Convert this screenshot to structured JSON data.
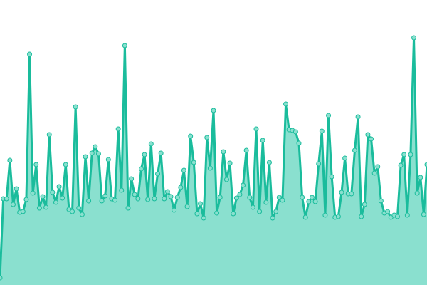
{
  "chart_data": {
    "type": "area",
    "title": "",
    "xlabel": "",
    "ylabel": "",
    "ylim": [
      0,
      400
    ],
    "grid": false,
    "legend": "none",
    "markers": true,
    "colors": {
      "line": "#1abc9c",
      "fill": "#8ae0cf",
      "marker_fill": "#8ae0cf",
      "marker_stroke": "#1abc9c"
    },
    "values": [
      10,
      121,
      121,
      175,
      113,
      135,
      102,
      103,
      120,
      324,
      129,
      169,
      108,
      124,
      109,
      211,
      130,
      116,
      138,
      122,
      169,
      106,
      103,
      250,
      108,
      99,
      180,
      118,
      185,
      194,
      184,
      118,
      125,
      176,
      121,
      119,
      219,
      133,
      336,
      108,
      149,
      127,
      121,
      163,
      183,
      120,
      198,
      121,
      156,
      185,
      121,
      131,
      124,
      105,
      123,
      137,
      161,
      110,
      209,
      172,
      100,
      114,
      94,
      207,
      164,
      245,
      101,
      123,
      187,
      148,
      171,
      100,
      122,
      127,
      140,
      189,
      123,
      109,
      219,
      103,
      203,
      116,
      172,
      94,
      103,
      123,
      119,
      254,
      218,
      217,
      215,
      199,
      123,
      95,
      117,
      123,
      117,
      170,
      216,
      98,
      238,
      152,
      95,
      96,
      130,
      178,
      128,
      128,
      189,
      236,
      96,
      113,
      211,
      205,
      157,
      166,
      118,
      101,
      103,
      95,
      98,
      96,
      168,
      183,
      98,
      183,
      347,
      129,
      151,
      99,
      169
    ]
  }
}
